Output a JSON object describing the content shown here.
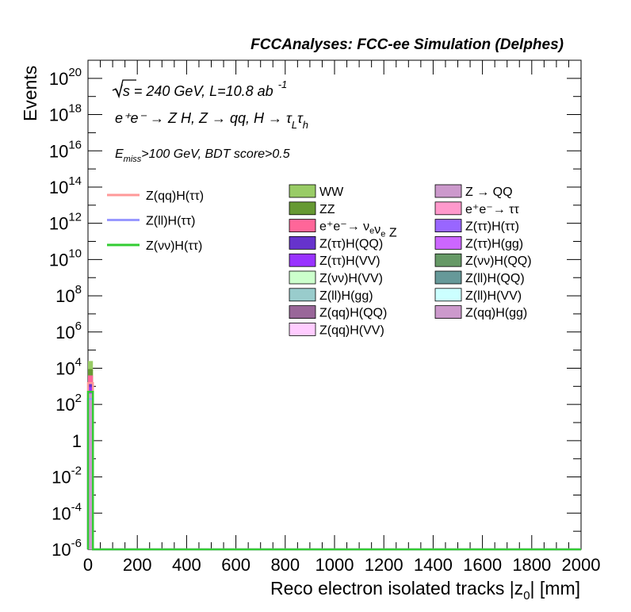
{
  "header": {
    "title": "FCCAnalyses: FCC-ee Simulation (Delphes)"
  },
  "annotations": {
    "line1_prefix": "√s = 240 GeV, L=10.8 ab",
    "line1_exp": "-1",
    "line2": "e⁺e⁻ → Z H, Z → qq, H → τ",
    "line2_sub1": "L",
    "line2_tau": "τ",
    "line2_sub2": "h",
    "line3_prefix": "E",
    "line3_sub": "miss",
    "line3_rest": ">100 GeV, BDT score>0.5"
  },
  "chart_data": {
    "type": "bar",
    "xlabel": "Reco electron isolated tracks |z0| [mm]",
    "ylabel": "Events",
    "xlim": [
      0,
      2000
    ],
    "ylim": [
      1e-06,
      1e+21
    ],
    "yscale": "log",
    "x_ticks": [
      "0",
      "200",
      "400",
      "600",
      "800",
      "1000",
      "1200",
      "1400",
      "1600",
      "1800",
      "2000"
    ],
    "y_ticks": [
      {
        "base": "10",
        "exp": "20",
        "value": 1e+20
      },
      {
        "base": "10",
        "exp": "18",
        "value": 1e+18
      },
      {
        "base": "10",
        "exp": "16",
        "value": 1e+16
      },
      {
        "base": "10",
        "exp": "14",
        "value": 100000000000000.0
      },
      {
        "base": "10",
        "exp": "12",
        "value": 1000000000000.0
      },
      {
        "base": "10",
        "exp": "10",
        "value": 10000000000.0
      },
      {
        "base": "10",
        "exp": "8",
        "value": 100000000.0
      },
      {
        "base": "10",
        "exp": "6",
        "value": 1000000.0
      },
      {
        "base": "10",
        "exp": "4",
        "value": 10000.0
      },
      {
        "base": "10",
        "exp": "2",
        "value": 100.0
      },
      {
        "base": "1",
        "exp": "",
        "value": 1
      },
      {
        "base": "10",
        "exp": "-2",
        "value": 0.01
      },
      {
        "base": "10",
        "exp": "-4",
        "value": 0.0001
      },
      {
        "base": "10",
        "exp": "-6",
        "value": 1e-06
      }
    ],
    "bin_width": 20,
    "stack_bins": [
      {
        "x0": 0,
        "x1": 20,
        "layers": [
          {
            "name": "WW",
            "top": 25000.0
          },
          {
            "name": "ZZ",
            "top": 9000.0
          },
          {
            "name": "e⁺e⁻→ ν_eν_e Z",
            "top": 4000.0
          },
          {
            "name": "Z(ττ)H(QQ)",
            "top": 1500.0
          },
          {
            "name": "Z(ττ)H(VV)",
            "top": 900
          },
          {
            "name": "Z → QQ",
            "top": 400
          }
        ]
      }
    ],
    "signal_series": [
      {
        "name": "Z(qq)H(ττ)",
        "color": "#ff9999",
        "x0": 0,
        "x1": 20,
        "value": 1500.0
      },
      {
        "name": "Z(ll)H(ττ)",
        "color": "#9999ff",
        "x0": 0,
        "x1": 20,
        "value": 200
      },
      {
        "name": "Z(νν)H(ττ)",
        "color": "#33cc33",
        "x0": 0,
        "x1": 20,
        "value": 500
      }
    ],
    "legend_signal": [
      {
        "label": "Z(qq)H(ττ)",
        "color": "#ff9999"
      },
      {
        "label": "Z(ll)H(ττ)",
        "color": "#9999ff"
      },
      {
        "label": "Z(νν)H(ττ)",
        "color": "#33cc33"
      }
    ],
    "legend_background_col1": [
      {
        "label": "WW",
        "color": "#99cc66"
      },
      {
        "label": "ZZ",
        "color": "#669933"
      },
      {
        "label": "e⁺e⁻→ ν_eν_e Z",
        "color": "#ff6699"
      },
      {
        "label": "Z(ττ)H(QQ)",
        "color": "#6633cc"
      },
      {
        "label": "Z(ττ)H(VV)",
        "color": "#9933ff"
      },
      {
        "label": "Z(νν)H(VV)",
        "color": "#ccffcc"
      },
      {
        "label": "Z(ll)H(gg)",
        "color": "#99cccc"
      },
      {
        "label": "Z(qq)H(QQ)",
        "color": "#996699"
      },
      {
        "label": "Z(qq)H(VV)",
        "color": "#ffccff"
      }
    ],
    "legend_background_col2": [
      {
        "label": "Z → QQ",
        "color": "#cc99cc"
      },
      {
        "label": "e⁺e⁻→ ττ",
        "color": "#ff99cc"
      },
      {
        "label": "Z(ττ)H(ττ)",
        "color": "#9966ff"
      },
      {
        "label": "Z(ττ)H(gg)",
        "color": "#cc66ff"
      },
      {
        "label": "Z(νν)H(QQ)",
        "color": "#669966"
      },
      {
        "label": "Z(ll)H(QQ)",
        "color": "#669999"
      },
      {
        "label": "Z(ll)H(VV)",
        "color": "#ccffff"
      },
      {
        "label": "Z(qq)H(gg)",
        "color": "#cc99cc"
      }
    ]
  }
}
